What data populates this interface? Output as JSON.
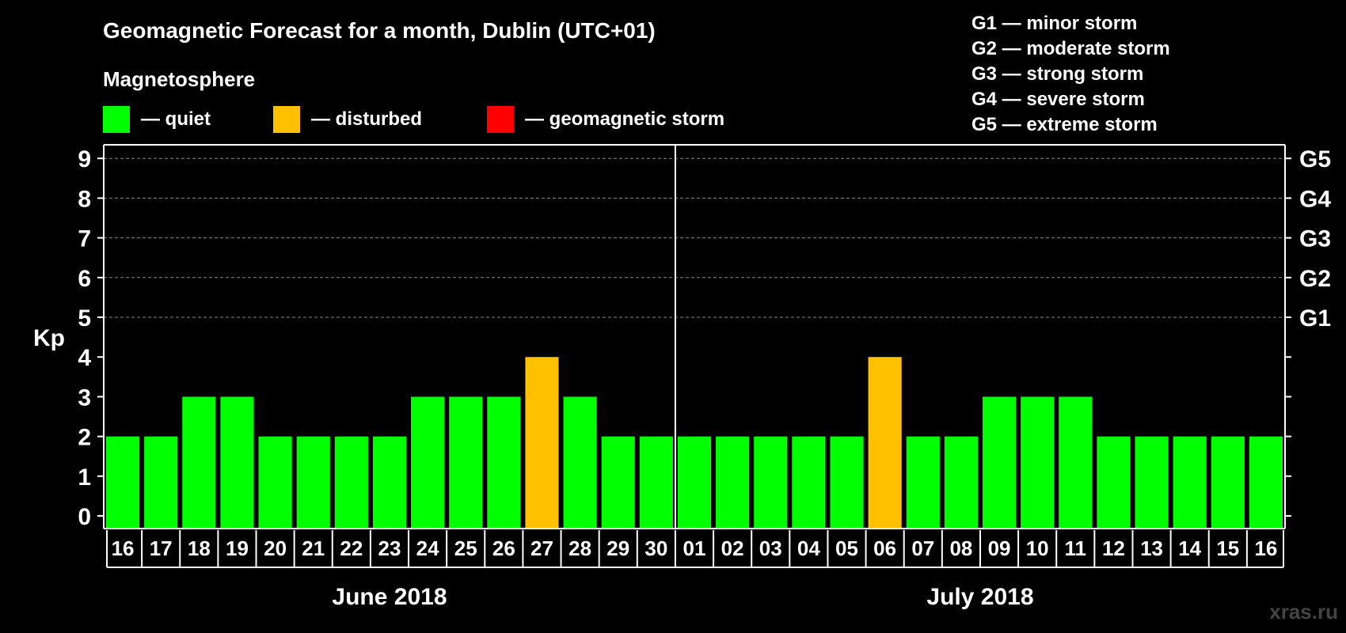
{
  "chart_data": {
    "type": "bar",
    "title": "Geomagnetic Forecast for a month, Dublin (UTC+01)",
    "legend": {
      "heading": "Magnetosphere",
      "items": [
        {
          "label": "— quiet",
          "color": "#00ff00"
        },
        {
          "label": "— disturbed",
          "color": "#ffc000"
        },
        {
          "label": "— geomagnetic storm",
          "color": "#ff0000"
        }
      ]
    },
    "storm_scale": [
      "G1 — minor storm",
      "G2 — moderate storm",
      "G3 — strong storm",
      "G4 — severe storm",
      "G5 — extreme storm"
    ],
    "ylabel": "Kp",
    "ylim": [
      0,
      9
    ],
    "yticks": [
      "0",
      "1",
      "2",
      "3",
      "4",
      "5",
      "6",
      "7",
      "8",
      "9"
    ],
    "right_axis": [
      {
        "value": 5,
        "label": "G1"
      },
      {
        "value": 6,
        "label": "G2"
      },
      {
        "value": 7,
        "label": "G3"
      },
      {
        "value": 8,
        "label": "G4"
      },
      {
        "value": 9,
        "label": "G5"
      }
    ],
    "categories": [
      "16",
      "17",
      "18",
      "19",
      "20",
      "21",
      "22",
      "23",
      "24",
      "25",
      "26",
      "27",
      "28",
      "29",
      "30",
      "01",
      "02",
      "03",
      "04",
      "05",
      "06",
      "07",
      "08",
      "09",
      "10",
      "11",
      "12",
      "13",
      "14",
      "15",
      "16"
    ],
    "values": [
      2,
      2,
      3,
      3,
      2,
      2,
      2,
      2,
      3,
      3,
      3,
      4,
      3,
      2,
      2,
      2,
      2,
      2,
      2,
      2,
      4,
      2,
      2,
      3,
      3,
      3,
      2,
      2,
      2,
      2,
      2
    ],
    "status": [
      "quiet",
      "quiet",
      "quiet",
      "quiet",
      "quiet",
      "quiet",
      "quiet",
      "quiet",
      "quiet",
      "quiet",
      "quiet",
      "disturbed",
      "quiet",
      "quiet",
      "quiet",
      "quiet",
      "quiet",
      "quiet",
      "quiet",
      "quiet",
      "disturbed",
      "quiet",
      "quiet",
      "quiet",
      "quiet",
      "quiet",
      "quiet",
      "quiet",
      "quiet",
      "quiet",
      "quiet"
    ],
    "colors": {
      "quiet": "#00ff00",
      "disturbed": "#ffc000",
      "storm": "#ff0000"
    },
    "months": [
      {
        "label": "June 2018",
        "start": 0,
        "count": 15
      },
      {
        "label": "July 2018",
        "start": 15,
        "count": 16
      }
    ],
    "grid": true
  },
  "watermark": "xras.ru"
}
